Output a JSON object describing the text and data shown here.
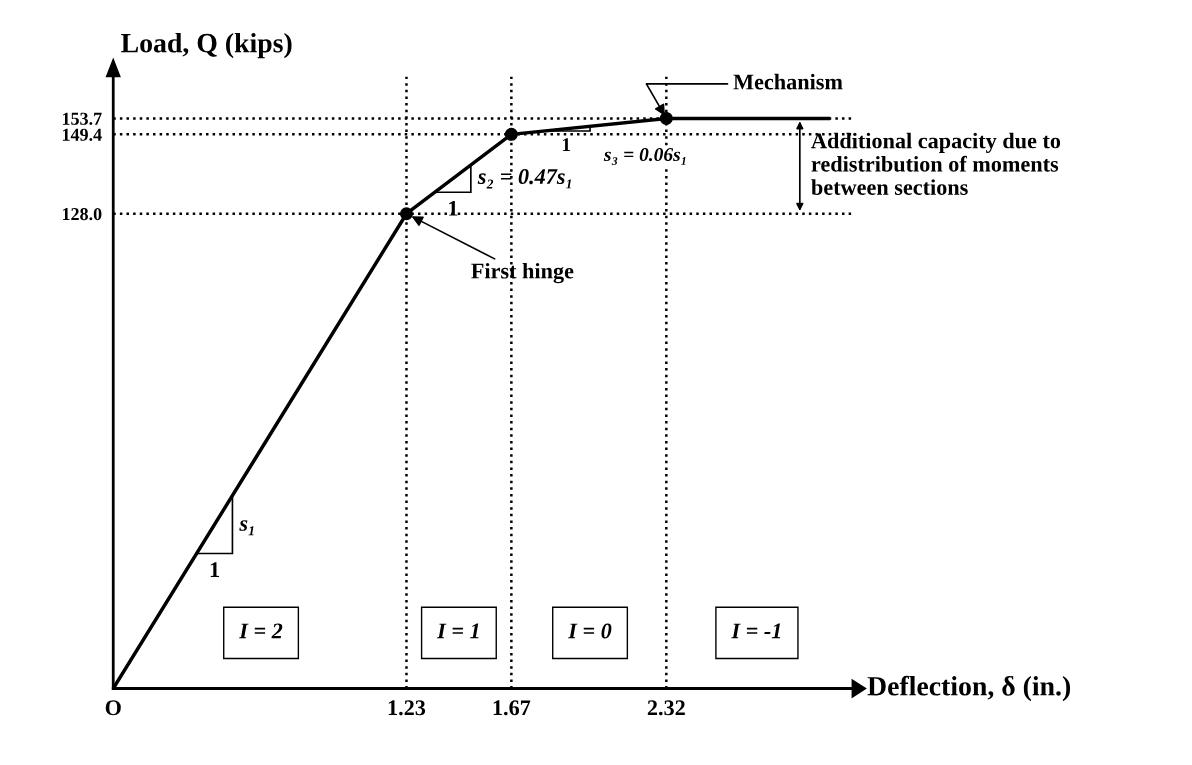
{
  "chart_data": {
    "type": "line",
    "xlabel": "Deflection, δ (in.)",
    "ylabel": "Load, Q (kips)",
    "xlim": [
      0,
      3.1
    ],
    "ylim": [
      0,
      165
    ],
    "xticks": [
      {
        "value": 0,
        "label": "O"
      },
      1.23,
      1.67,
      2.32
    ],
    "yticks": [
      {
        "value": 128.0,
        "label": "128.0"
      },
      149.4,
      153.7
    ],
    "grid": false,
    "series": [
      {
        "color": "#000000",
        "marker": "none",
        "x": [
          0,
          1.23,
          1.67,
          2.32,
          2.4,
          3.0
        ],
        "values": [
          0,
          128.0,
          149.4,
          153.7,
          153.7,
          153.7
        ]
      },
      {
        "type": "scatter",
        "color": "#000000",
        "marker": "circle",
        "x": [
          1.23,
          1.67,
          2.32
        ],
        "values": [
          128.0,
          149.4,
          153.7
        ]
      }
    ],
    "ref_lines": [
      {
        "axis": "y",
        "value": 128.0,
        "line_style": "dotted",
        "color": "#000000"
      },
      {
        "axis": "y",
        "value": 149.4,
        "line_style": "dotted",
        "color": "#000000"
      },
      {
        "axis": "y",
        "value": 153.7,
        "line_style": "dotted",
        "color": "#000000"
      },
      {
        "axis": "x",
        "value": 1.23,
        "line_style": "dotted",
        "color": "#000000"
      },
      {
        "axis": "x",
        "value": 1.67,
        "line_style": "dotted",
        "color": "#000000"
      },
      {
        "axis": "x",
        "value": 2.32,
        "line_style": "dotted",
        "color": "#000000"
      }
    ],
    "annotations": [
      {
        "text": "First hinge",
        "x": 1.23,
        "y": 128.0
      },
      {
        "text": "Mechanism",
        "x": 2.32,
        "y": 153.7
      },
      {
        "text": "Additional capacity due to\nredistribution of moments\nbetween sections",
        "x": 2.88,
        "y": 153.7
      },
      "s₁",
      "1",
      "s₂ = 0.47s₁",
      "1",
      "s₃ = 0.06s₁",
      "1",
      "I = 2",
      "I = 1",
      "I = 0",
      "I = -1"
    ]
  }
}
